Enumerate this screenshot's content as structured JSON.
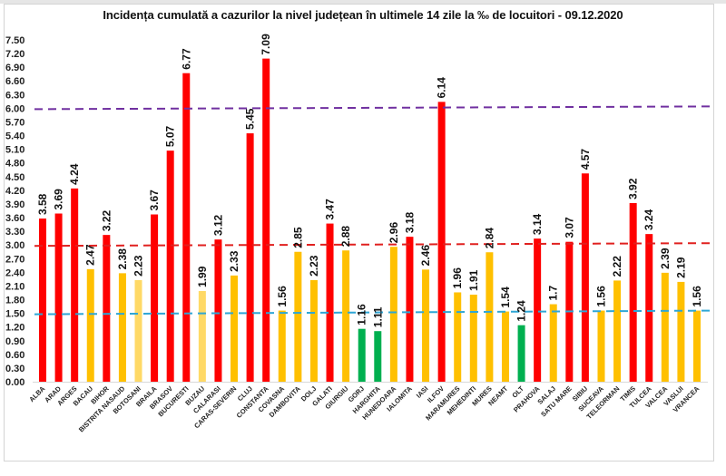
{
  "chart_data": {
    "type": "bar",
    "title": "Incidența cumulată a cazurilor la nivel județean în ultimele 14 zile la ‰ de locuitori - 09.12.2020",
    "xlabel": "",
    "ylabel": "",
    "ylim": [
      0,
      7.5
    ],
    "ytick_step": 0.3,
    "yticks": [
      "0.00",
      "0.30",
      "0.60",
      "0.90",
      "1.20",
      "1.50",
      "1.80",
      "2.10",
      "2.40",
      "2.70",
      "3.00",
      "3.30",
      "3.60",
      "3.90",
      "4.20",
      "4.50",
      "4.80",
      "5.10",
      "5.40",
      "5.70",
      "6.00",
      "6.30",
      "6.60",
      "6.90",
      "7.20",
      "7.50"
    ],
    "grid": false,
    "legend": "none",
    "categories": [
      "ALBA",
      "ARAD",
      "ARGES",
      "BACAU",
      "BIHOR",
      "BISTRITA NASAUD",
      "BOTOSANI",
      "BRAILA",
      "BRASOV",
      "BUCURESTI",
      "BUZAU",
      "CALARASI",
      "CARAS-SEVERIN",
      "CLUJ",
      "CONSTANTA",
      "COVASNA",
      "DAMBOVITA",
      "DOLJ",
      "GALATI",
      "GIURGIU",
      "GORJ",
      "HARGHITA",
      "HUNEDOARA",
      "IALOMITA",
      "IASI",
      "ILFOV",
      "MARAMURES",
      "MEHEDINTI",
      "MURES",
      "NEAMT",
      "OLT",
      "PRAHOVA",
      "SALAJ",
      "SATU MARE",
      "SIBIU",
      "SUCEAVA",
      "TELEORMAN",
      "TIMIS",
      "TULCEA",
      "VALCEA",
      "VASLUI",
      "VRANCEA"
    ],
    "values": [
      3.58,
      3.69,
      4.24,
      2.47,
      3.22,
      2.38,
      2.23,
      3.67,
      5.07,
      6.77,
      1.99,
      3.12,
      2.33,
      5.45,
      7.09,
      1.56,
      2.85,
      2.23,
      3.47,
      2.88,
      1.16,
      1.11,
      2.96,
      3.18,
      2.46,
      6.14,
      1.96,
      1.91,
      2.84,
      1.54,
      1.24,
      3.14,
      1.7,
      3.07,
      4.57,
      1.56,
      2.22,
      3.92,
      3.24,
      2.39,
      2.19,
      1.56
    ],
    "value_labels": [
      "3.58",
      "3.69",
      "4.24",
      "2.47",
      "3.22",
      "2.38",
      "2.23",
      "3.67",
      "5.07",
      "6.77",
      "1.99",
      "3.12",
      "2.33",
      "5.45",
      "7.09",
      "1.56",
      "2.85",
      "2.23",
      "3.47",
      "2.88",
      "1.16",
      "1.11",
      "2.96",
      "3.18",
      "2.46",
      "6.14",
      "1.96",
      "1.91",
      "2.84",
      "1.54",
      "1.24",
      "3.14",
      "1.7",
      "3.07",
      "4.57",
      "1.56",
      "2.22",
      "3.92",
      "3.24",
      "2.39",
      "2.19",
      "1.56"
    ],
    "bar_colors": [
      "#ff0000",
      "#ff0000",
      "#ff0000",
      "#ffc000",
      "#ff0000",
      "#ffc000",
      "#ffd966",
      "#ff0000",
      "#ff0000",
      "#ff0000",
      "#ffd966",
      "#ff0000",
      "#ffc000",
      "#ff0000",
      "#ff0000",
      "#ffc000",
      "#ffc000",
      "#ffc000",
      "#ff0000",
      "#ffc000",
      "#00b050",
      "#00b050",
      "#ffc000",
      "#ff0000",
      "#ffc000",
      "#ff0000",
      "#ffc000",
      "#ffc000",
      "#ffc000",
      "#ffc000",
      "#00b050",
      "#ff0000",
      "#ffc000",
      "#ff0000",
      "#ff0000",
      "#ffc000",
      "#ffc000",
      "#ff0000",
      "#ff0000",
      "#ffc000",
      "#ffc000",
      "#ffc000"
    ],
    "reference_lines": [
      {
        "name": "threshold-6",
        "value": 6.0,
        "color": "#7030a0"
      },
      {
        "name": "threshold-3",
        "value": 3.0,
        "color": "#e0201f"
      },
      {
        "name": "threshold-1.5",
        "value": 1.5,
        "color": "#2ea6d6"
      }
    ]
  }
}
